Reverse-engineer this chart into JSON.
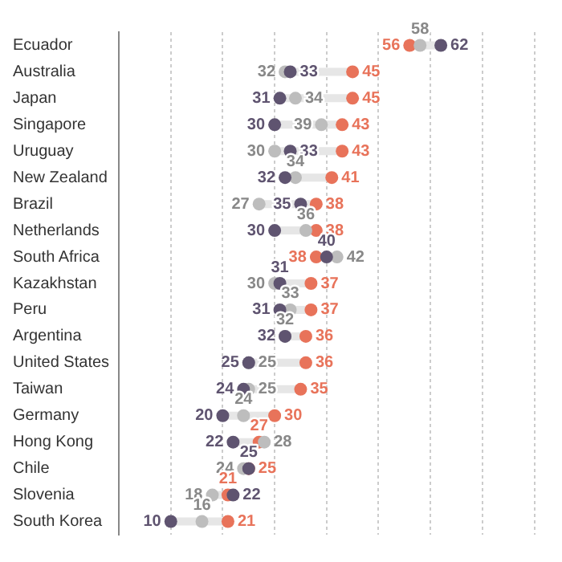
{
  "chart_data": {
    "type": "scatter",
    "categories": [
      "Ecuador",
      "Australia",
      "Japan",
      "Singapore",
      "Uruguay",
      "New Zealand",
      "Brazil",
      "Netherlands",
      "South Africa",
      "Kazakhstan",
      "Peru",
      "Argentina",
      "United States",
      "Taiwan",
      "Germany",
      "Hong Kong",
      "Chile",
      "Slovenia",
      "South Korea"
    ],
    "orientation": "horizontal",
    "series": [
      {
        "color": "#5f5470",
        "values": [
          62,
          33,
          31,
          30,
          33,
          32,
          35,
          30,
          40,
          31,
          31,
          32,
          25,
          24,
          20,
          22,
          25,
          22,
          10
        ]
      },
      {
        "color": "#bdbdbd",
        "values": [
          58,
          32,
          34,
          39,
          30,
          34,
          27,
          36,
          42,
          30,
          33,
          32,
          25,
          25,
          24,
          28,
          24,
          18,
          16
        ]
      },
      {
        "color": "#e8735a",
        "values": [
          56,
          45,
          45,
          43,
          43,
          41,
          38,
          38,
          38,
          37,
          37,
          36,
          36,
          35,
          30,
          27,
          25,
          21,
          21
        ]
      }
    ],
    "xlim": [
      0,
      81
    ],
    "xticks": [
      {
        "value": 10,
        "label": null
      },
      {
        "value": 20,
        "label": null
      },
      {
        "value": 30,
        "label": null
      },
      {
        "value": 40,
        "label": null
      },
      {
        "value": 50,
        "label": null
      },
      {
        "value": 60,
        "label": null
      },
      {
        "value": 70,
        "label": null
      },
      {
        "value": 80,
        "label": null
      }
    ],
    "tick_labels": "y",
    "grid": "x",
    "legend": false,
    "marker": "circle",
    "data_labels": true
  }
}
